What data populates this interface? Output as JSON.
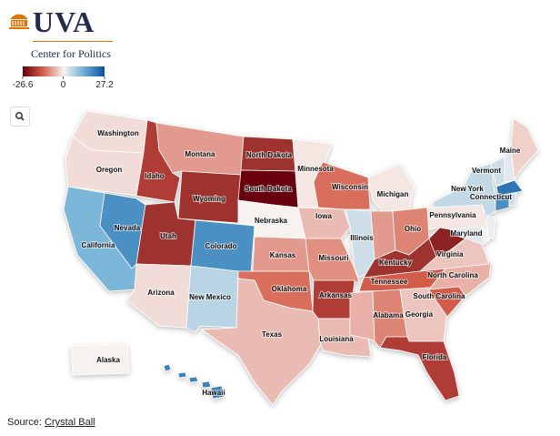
{
  "header": {
    "title": "UVA",
    "subtitle": "Center for Politics"
  },
  "legend": {
    "ticks": [
      -26.6,
      0,
      27.2
    ],
    "colors": [
      "#67000d",
      "#d6604d",
      "#f6f2ef",
      "#6baed6",
      "#08519c"
    ]
  },
  "states": [
    {
      "name": "Washington",
      "value": -2
    },
    {
      "name": "Oregon",
      "value": -2
    },
    {
      "name": "California",
      "value": 12
    },
    {
      "name": "Nevada",
      "value": 18
    },
    {
      "name": "Idaho",
      "value": -18
    },
    {
      "name": "Montana",
      "value": -8
    },
    {
      "name": "Wyoming",
      "value": -20
    },
    {
      "name": "Utah",
      "value": -20
    },
    {
      "name": "Colorado",
      "value": 18
    },
    {
      "name": "Arizona",
      "value": -2
    },
    {
      "name": "New Mexico",
      "value": 6
    },
    {
      "name": "North Dakota",
      "value": -20
    },
    {
      "name": "South Dakota",
      "value": -26.6
    },
    {
      "name": "Nebraska",
      "value": 0
    },
    {
      "name": "Kansas",
      "value": -8
    },
    {
      "name": "Oklahoma",
      "value": -12
    },
    {
      "name": "Texas",
      "value": -5
    },
    {
      "name": "Minnesota",
      "value": -1
    },
    {
      "name": "Iowa",
      "value": -5
    },
    {
      "name": "Missouri",
      "value": -9
    },
    {
      "name": "Arkansas",
      "value": -18
    },
    {
      "name": "Louisiana",
      "value": -5
    },
    {
      "name": "Wisconsin",
      "value": -12
    },
    {
      "name": "Illinois",
      "value": 4
    },
    {
      "name": "Michigan",
      "value": -1
    },
    {
      "name": null,
      "value": -8
    },
    {
      "name": "Ohio",
      "value": -10
    },
    {
      "name": "Kentucky",
      "value": -20
    },
    {
      "name": "Tennessee",
      "value": -14
    },
    {
      "name": null,
      "value": -6
    },
    {
      "name": "Alabama",
      "value": -10
    },
    {
      "name": "Georgia",
      "value": -4
    },
    {
      "name": "Florida",
      "value": -18
    },
    {
      "name": "South Carolina",
      "value": -14
    },
    {
      "name": "North Carolina",
      "value": -6
    },
    {
      "name": "Virginia",
      "value": -4
    },
    {
      "name": null,
      "value": -22
    },
    {
      "name": "Maryland",
      "value": 2
    },
    {
      "name": "Pennsylvania",
      "value": -1
    },
    {
      "name": "New York",
      "value": 5
    },
    {
      "name": "Vermont",
      "value": 4
    },
    {
      "name": null,
      "value": 2
    },
    {
      "name": "Maine",
      "value": -3
    },
    {
      "name": null,
      "value": 22
    },
    {
      "name": "Connecticut",
      "value": 18
    },
    {
      "name": null,
      "value": 4
    },
    {
      "name": null,
      "value": 1
    },
    {
      "name": null,
      "value": 0
    },
    {
      "name": "Alaska",
      "value": 0
    },
    {
      "name": "Hawaii",
      "value": 20
    }
  ],
  "source": {
    "prefix": "Source:",
    "link": "Crystal Ball"
  }
}
